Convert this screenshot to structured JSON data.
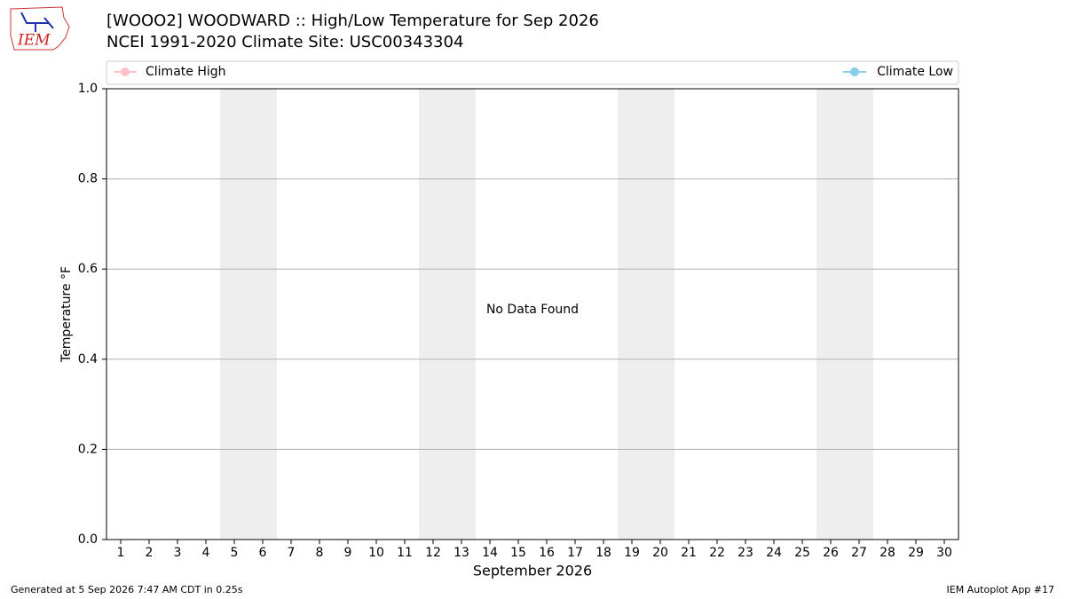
{
  "chart_data": {
    "type": "line",
    "title": "[WOOO2] WOODWARD :: High/Low Temperature for Sep 2026",
    "subtitle": "NCEI 1991-2020 Climate Site: USC00343304",
    "logo_text": "IEM",
    "ylabel": "Temperature °F",
    "xlabel": "September 2026",
    "annotation": "No Data Found",
    "categories": [
      "1",
      "2",
      "3",
      "4",
      "5",
      "6",
      "7",
      "8",
      "9",
      "10",
      "11",
      "12",
      "13",
      "14",
      "15",
      "16",
      "17",
      "18",
      "19",
      "20",
      "21",
      "22",
      "23",
      "24",
      "25",
      "26",
      "27",
      "28",
      "29",
      "30"
    ],
    "series": [
      {
        "name": "Climate High",
        "color": "#ffc0cb",
        "values": [
          null,
          null,
          null,
          null,
          null,
          null,
          null,
          null,
          null,
          null,
          null,
          null,
          null,
          null,
          null,
          null,
          null,
          null,
          null,
          null,
          null,
          null,
          null,
          null,
          null,
          null,
          null,
          null,
          null,
          null
        ]
      },
      {
        "name": "Climate Low",
        "color": "#87ceeb",
        "values": [
          null,
          null,
          null,
          null,
          null,
          null,
          null,
          null,
          null,
          null,
          null,
          null,
          null,
          null,
          null,
          null,
          null,
          null,
          null,
          null,
          null,
          null,
          null,
          null,
          null,
          null,
          null,
          null,
          null,
          null
        ]
      }
    ],
    "weekend_spans": [
      [
        5,
        6
      ],
      [
        12,
        13
      ],
      [
        19,
        20
      ],
      [
        26,
        27
      ]
    ],
    "shade_color": "#eeeeee",
    "ylim": [
      0,
      1
    ],
    "yticks": [
      {
        "value": 0,
        "label": "0.0"
      },
      0.2,
      0.4,
      0.6,
      0.8,
      {
        "value": 1,
        "label": "1.0"
      }
    ],
    "grid": true,
    "legend": "top",
    "footer_left": "Generated at 5 Sep 2026 7:47 AM CDT in 0.25s",
    "footer_right": "IEM Autoplot App #17"
  }
}
